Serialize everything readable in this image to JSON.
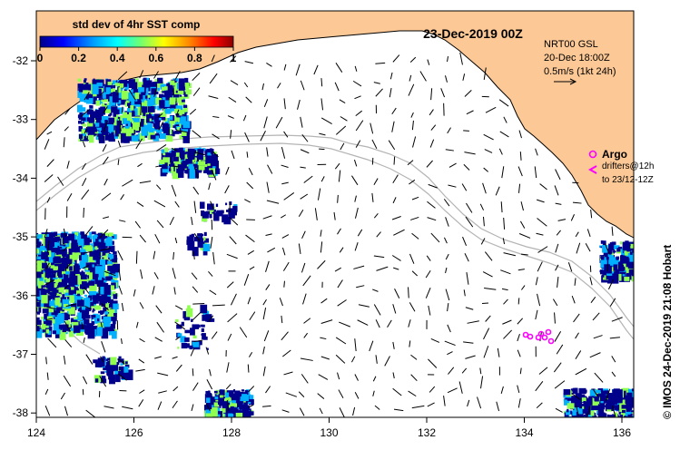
{
  "title": "23-Dec-2019 00Z",
  "colorbar": {
    "title": "std dev of 4hr SST comp",
    "ticks": [
      "0",
      "0.2",
      "0.4",
      "0.6",
      "0.8",
      "1"
    ],
    "colors": [
      "#00008b",
      "#0000ff",
      "#00a0ff",
      "#00ffff",
      "#70ff70",
      "#ffff00",
      "#ff8000",
      "#ff0000",
      "#8b0000"
    ]
  },
  "current_info": {
    "line1": "NRT00 GSL",
    "line2": "20-Dec 18:00Z",
    "line3": "0.5m/s (1kt 24h)"
  },
  "argo": {
    "label": "Argo",
    "line1": "drifters@12h",
    "line2": "to 23/12-12Z"
  },
  "credit": "© IMOS 24-Dec-2019 21:08 Hobart",
  "x_ticks": [
    "124",
    "126",
    "128",
    "130",
    "132",
    "134",
    "136"
  ],
  "y_ticks": [
    "-32",
    "-33",
    "-34",
    "-35",
    "-36",
    "-37",
    "-38"
  ],
  "colors": {
    "land": "#fcc896",
    "coast": "#000000",
    "argo": "#ff00ff",
    "isobath": "#b4b4b4",
    "low_sd": "#00008b",
    "mid_sd": "#00b0ff",
    "high_sd": "#90ff50"
  }
}
